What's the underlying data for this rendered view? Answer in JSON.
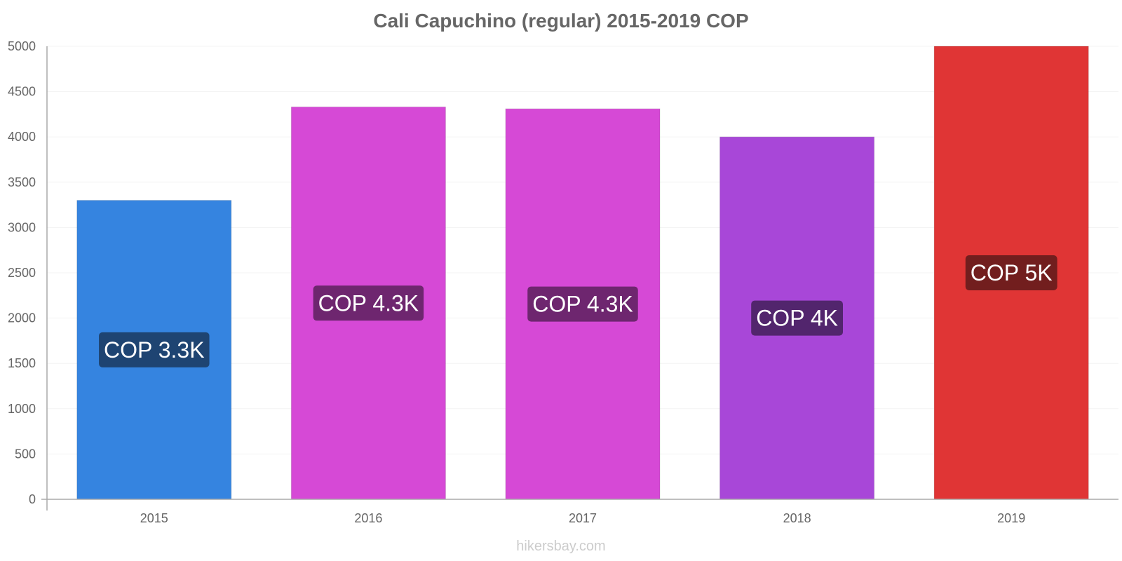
{
  "chart_data": {
    "type": "bar",
    "title": "Cali Capuchino (regular) 2015-2019 COP",
    "xlabel": "",
    "ylabel": "",
    "categories": [
      "2015",
      "2016",
      "2017",
      "2018",
      "2019"
    ],
    "values": [
      3300,
      4330,
      4310,
      4000,
      5000
    ],
    "data_labels": [
      "COP 3.3K",
      "COP 4.3K",
      "COP 4.3K",
      "COP 4K",
      "COP 5K"
    ],
    "bar_colors": [
      "#3584e0",
      "#d649d6",
      "#d649d6",
      "#a847d8",
      "#e03535"
    ],
    "label_bg_colors": [
      "#1e4472",
      "#6e266f",
      "#6e266f",
      "#52256d",
      "#721e1e"
    ],
    "ylim": [
      0,
      5000
    ],
    "yticks": [
      "0",
      "500",
      "1000",
      "1500",
      "2000",
      "2500",
      "3000",
      "3500",
      "4000",
      "4500",
      "5000"
    ],
    "grid": true,
    "legend": "none"
  },
  "watermark": "hikersbay.com"
}
